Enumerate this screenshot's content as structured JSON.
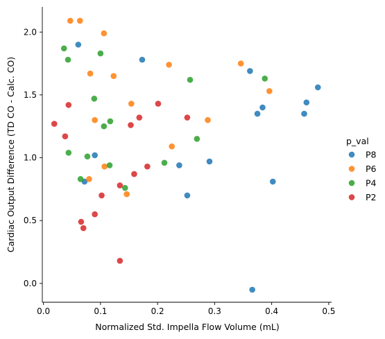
{
  "chart_data": {
    "type": "scatter",
    "xlabel": "Normalized Std. Impella Flow Volume (mL)",
    "ylabel": "Cardiac Output Difference (TD CO - Calc. CO)",
    "xlim": [
      -0.002,
      0.505
    ],
    "ylim": [
      -0.15,
      2.2
    ],
    "xticks": [
      0.0,
      0.1,
      0.2,
      0.3,
      0.4,
      0.5
    ],
    "xtick_labels": [
      "0.0",
      "0.1",
      "0.2",
      "0.3",
      "0.4",
      "0.5"
    ],
    "yticks": [
      0.0,
      0.5,
      1.0,
      1.5,
      2.0
    ],
    "ytick_labels": [
      "0.0",
      "0.5",
      "1.0",
      "1.5",
      "2.0"
    ],
    "grid": false,
    "legend": {
      "title": "p_val",
      "position": "right"
    },
    "series": [
      {
        "name": "P8",
        "color": "#1f77b4",
        "points": [
          [
            0.061,
            1.9
          ],
          [
            0.173,
            1.78
          ],
          [
            0.362,
            1.69
          ],
          [
            0.481,
            1.56
          ],
          [
            0.461,
            1.44
          ],
          [
            0.384,
            1.4
          ],
          [
            0.375,
            1.35
          ],
          [
            0.457,
            1.35
          ],
          [
            0.09,
            1.02
          ],
          [
            0.291,
            0.97
          ],
          [
            0.238,
            0.94
          ],
          [
            0.072,
            0.81
          ],
          [
            0.402,
            0.81
          ],
          [
            0.252,
            0.7
          ],
          [
            0.366,
            -0.05
          ]
        ]
      },
      {
        "name": "P6",
        "color": "#ff7f0e",
        "points": [
          [
            0.047,
            2.09
          ],
          [
            0.064,
            2.09
          ],
          [
            0.106,
            1.99
          ],
          [
            0.346,
            1.75
          ],
          [
            0.22,
            1.74
          ],
          [
            0.082,
            1.67
          ],
          [
            0.123,
            1.65
          ],
          [
            0.396,
            1.53
          ],
          [
            0.154,
            1.43
          ],
          [
            0.09,
            1.3
          ],
          [
            0.288,
            1.3
          ],
          [
            0.225,
            1.09
          ],
          [
            0.107,
            0.93
          ],
          [
            0.08,
            0.83
          ],
          [
            0.146,
            0.71
          ]
        ]
      },
      {
        "name": "P4",
        "color": "#2ca02c",
        "points": [
          [
            0.036,
            1.87
          ],
          [
            0.1,
            1.83
          ],
          [
            0.043,
            1.78
          ],
          [
            0.388,
            1.63
          ],
          [
            0.257,
            1.62
          ],
          [
            0.089,
            1.47
          ],
          [
            0.117,
            1.29
          ],
          [
            0.106,
            1.25
          ],
          [
            0.269,
            1.15
          ],
          [
            0.044,
            1.04
          ],
          [
            0.077,
            1.01
          ],
          [
            0.212,
            0.96
          ],
          [
            0.116,
            0.94
          ],
          [
            0.065,
            0.83
          ],
          [
            0.143,
            0.76
          ]
        ]
      },
      {
        "name": "P2",
        "color": "#d62728",
        "points": [
          [
            0.044,
            1.42
          ],
          [
            0.201,
            1.43
          ],
          [
            0.019,
            1.27
          ],
          [
            0.168,
            1.32
          ],
          [
            0.252,
            1.32
          ],
          [
            0.153,
            1.26
          ],
          [
            0.038,
            1.17
          ],
          [
            0.182,
            0.93
          ],
          [
            0.159,
            0.87
          ],
          [
            0.134,
            0.78
          ],
          [
            0.102,
            0.7
          ],
          [
            0.09,
            0.55
          ],
          [
            0.066,
            0.49
          ],
          [
            0.07,
            0.44
          ],
          [
            0.134,
            0.18
          ]
        ]
      }
    ]
  }
}
